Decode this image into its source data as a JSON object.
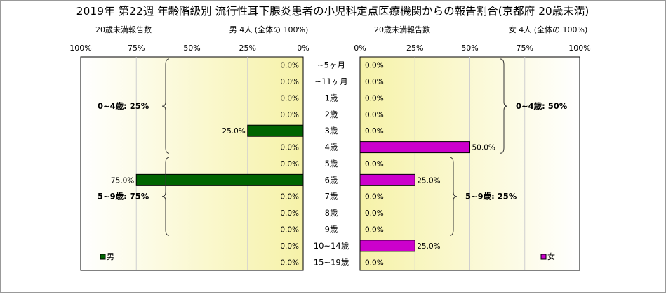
{
  "chart_data": {
    "type": "bar",
    "title": "2019年 第22週 年齢階級別 流行性耳下腺炎患者の小児科定点医療機関からの報告割合(京都府 20歳未満)",
    "categories": [
      "~5ヶ月",
      "~11ヶ月",
      "1歳",
      "2歳",
      "3歳",
      "4歳",
      "5歳",
      "6歳",
      "7歳",
      "8歳",
      "9歳",
      "10~14歳",
      "15~19歳"
    ],
    "xlim": [
      0,
      100
    ],
    "tick_labels": [
      "0%",
      "25%",
      "50%",
      "75%",
      "100%"
    ],
    "left_panel": {
      "subtitle_left": "20歳未満報告数",
      "subtitle_right": "男  4人  (全体の  100%)",
      "legend": "男",
      "color": "#006400",
      "values": [
        0,
        0,
        0,
        0,
        25,
        0,
        0,
        75,
        0,
        0,
        0,
        0,
        0
      ],
      "value_labels": [
        "0.0%",
        "0.0%",
        "0.0%",
        "0.0%",
        "25.0%",
        "0.0%",
        "0.0%",
        "75.0%",
        "0.0%",
        "0.0%",
        "0.0%",
        "0.0%",
        "0.0%"
      ],
      "groups": [
        {
          "label": "0~4歳: 25%",
          "from": 0,
          "to": 5
        },
        {
          "label": "5~9歳: 75%",
          "from": 6,
          "to": 10
        }
      ]
    },
    "right_panel": {
      "subtitle_left": "20歳未満報告数",
      "subtitle_right": "女  4人  (全体の  100%)",
      "legend": "女",
      "color": "#cc00cc",
      "values": [
        0,
        0,
        0,
        0,
        0,
        50,
        0,
        25,
        0,
        0,
        0,
        25,
        0
      ],
      "value_labels": [
        "0.0%",
        "0.0%",
        "0.0%",
        "0.0%",
        "0.0%",
        "50.0%",
        "0.0%",
        "25.0%",
        "0.0%",
        "0.0%",
        "0.0%",
        "25.0%",
        "0.0%"
      ],
      "groups": [
        {
          "label": "0~4歳: 50%",
          "from": 0,
          "to": 5
        },
        {
          "label": "5~9歳: 25%",
          "from": 6,
          "to": 10
        }
      ]
    }
  }
}
